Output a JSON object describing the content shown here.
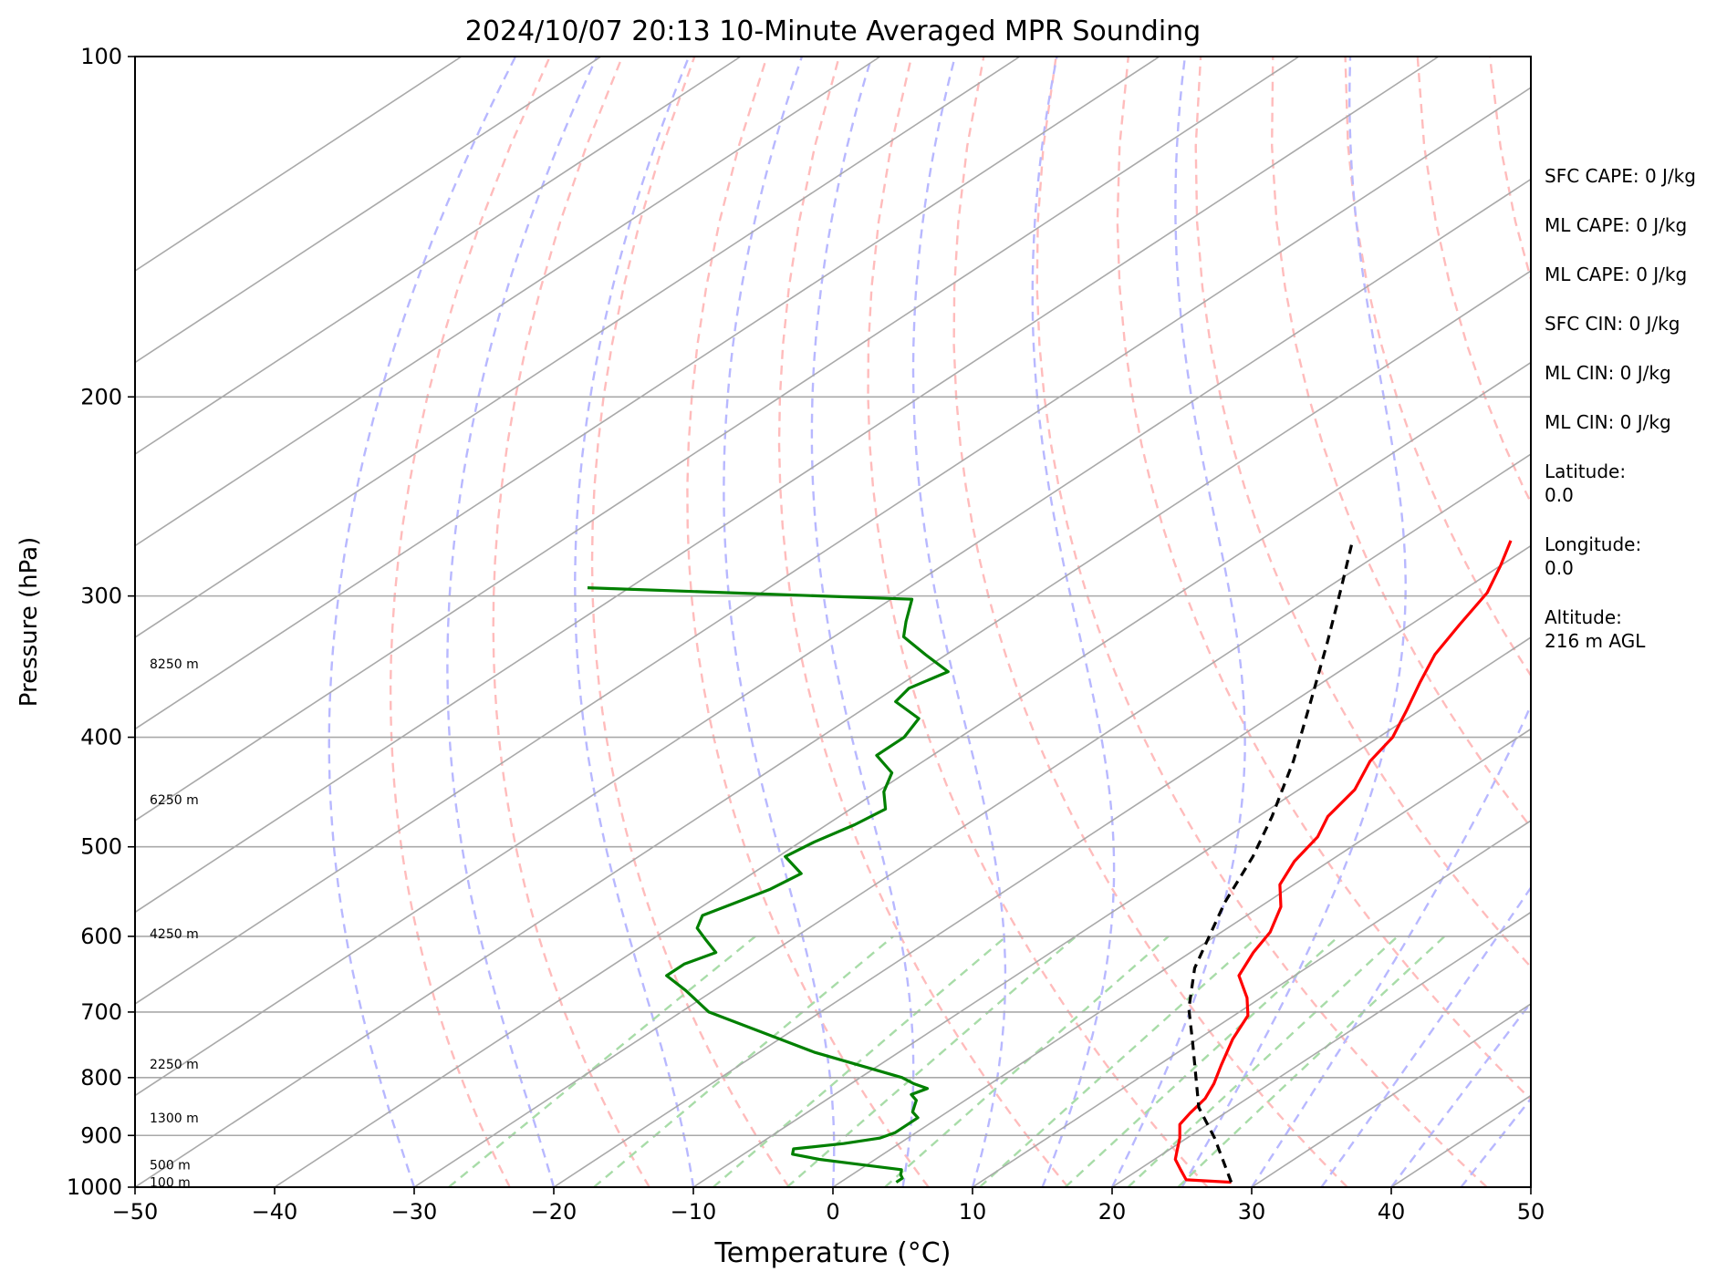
{
  "chart_data": {
    "type": "line",
    "title": "2024/10/07 20:13 10-Minute Averaged MPR Sounding",
    "xlabel": "Temperature (°C)",
    "ylabel": "Pressure (hPa)",
    "xlim": [
      -50,
      50
    ],
    "ylim": [
      1000,
      100
    ],
    "y_scale": "log",
    "skew": 45,
    "grid": true,
    "x_ticks": [
      "−50",
      "−40",
      "−30",
      "−20",
      "−10",
      "0",
      "10",
      "20",
      "30",
      "40",
      "50"
    ],
    "x_tick_values": [
      -50,
      -40,
      -30,
      -20,
      -10,
      0,
      10,
      20,
      30,
      40,
      50
    ],
    "y_ticks": [
      "100",
      "200",
      "300",
      "400",
      "500",
      "600",
      "700",
      "800",
      "900",
      "1000"
    ],
    "y_tick_values": [
      100,
      200,
      300,
      400,
      500,
      600,
      700,
      800,
      900,
      1000
    ],
    "height_labels": [
      {
        "text": "8250 m",
        "p": 345
      },
      {
        "text": "6250 m",
        "p": 455
      },
      {
        "text": "4250 m",
        "p": 598
      },
      {
        "text": "2250 m",
        "p": 780
      },
      {
        "text": "1300 m",
        "p": 870
      },
      {
        "text": "500 m",
        "p": 957
      },
      {
        "text": "100 m",
        "p": 992
      }
    ],
    "series": [
      {
        "role": "temperature",
        "color": "#ff0000",
        "points": [
          [
            28.0,
            990
          ],
          [
            24.5,
            985
          ],
          [
            23.0,
            965
          ],
          [
            21.5,
            945
          ],
          [
            20.5,
            925
          ],
          [
            19.5,
            905
          ],
          [
            18.0,
            880
          ],
          [
            17.5,
            860
          ],
          [
            17.0,
            835
          ],
          [
            16.0,
            810
          ],
          [
            14.5,
            780
          ],
          [
            12.5,
            740
          ],
          [
            11.0,
            705
          ],
          [
            9.0,
            680
          ],
          [
            6.0,
            650
          ],
          [
            4.5,
            620
          ],
          [
            3.5,
            595
          ],
          [
            1.5,
            565
          ],
          [
            -1.0,
            540
          ],
          [
            -2.5,
            515
          ],
          [
            -3.5,
            490
          ],
          [
            -5.0,
            470
          ],
          [
            -6.0,
            445
          ],
          [
            -8.0,
            420
          ],
          [
            -9.0,
            400
          ],
          [
            -11.0,
            378
          ],
          [
            -13.0,
            358
          ],
          [
            -15.0,
            338
          ],
          [
            -16.5,
            318
          ],
          [
            -18.0,
            298
          ],
          [
            -20.0,
            282
          ],
          [
            -22.0,
            268
          ]
        ]
      },
      {
        "role": "dewpoint",
        "color": "#008000",
        "points": [
          [
            4.0,
            990
          ],
          [
            4.0,
            982
          ],
          [
            3.5,
            975
          ],
          [
            3.0,
            965
          ],
          [
            -0.5,
            955
          ],
          [
            -4.0,
            945
          ],
          [
            -6.5,
            935
          ],
          [
            -7.0,
            925
          ],
          [
            -4.0,
            915
          ],
          [
            -2.0,
            905
          ],
          [
            -1.5,
            895
          ],
          [
            -1.5,
            880
          ],
          [
            -1.5,
            868
          ],
          [
            -2.5,
            858
          ],
          [
            -3.0,
            848
          ],
          [
            -3.5,
            838
          ],
          [
            -4.5,
            828
          ],
          [
            -4.0,
            818
          ],
          [
            -5.5,
            810
          ],
          [
            -7.0,
            800
          ],
          [
            -16.0,
            760
          ],
          [
            -28.0,
            700
          ],
          [
            -32.0,
            670
          ],
          [
            -35.0,
            650
          ],
          [
            -35.0,
            635
          ],
          [
            -34.0,
            620
          ],
          [
            -36.0,
            605
          ],
          [
            -38.0,
            590
          ],
          [
            -39.0,
            575
          ],
          [
            -38.0,
            560
          ],
          [
            -37.0,
            545
          ],
          [
            -36.5,
            528
          ],
          [
            -39.5,
            510
          ],
          [
            -39.0,
            495
          ],
          [
            -38.0,
            478
          ],
          [
            -37.5,
            463
          ],
          [
            -39.5,
            447
          ],
          [
            -41.0,
            430
          ],
          [
            -44.0,
            415
          ],
          [
            -44.0,
            400
          ],
          [
            -45.0,
            385
          ],
          [
            -48.5,
            372
          ],
          [
            -49.0,
            362
          ],
          [
            -48.0,
            350
          ],
          [
            -51.5,
            338
          ],
          [
            -55.0,
            326
          ],
          [
            -56.5,
            316
          ],
          [
            -58.5,
            302
          ],
          [
            -83.0,
            295
          ]
        ]
      },
      {
        "role": "parcel",
        "color": "#000000",
        "dashed": true,
        "points": [
          [
            28.0,
            990
          ],
          [
            22.0,
            905
          ],
          [
            17.5,
            850
          ],
          [
            10.0,
            745
          ],
          [
            6.0,
            695
          ],
          [
            2.0,
            640
          ],
          [
            -3.0,
            560
          ],
          [
            -6.0,
            510
          ],
          [
            -9.0,
            470
          ],
          [
            -13.5,
            420
          ],
          [
            -19.0,
            370
          ],
          [
            -24.0,
            330
          ],
          [
            -29.0,
            295
          ],
          [
            -33.0,
            270
          ]
        ]
      }
    ]
  },
  "info_panel": [
    {
      "text": "SFC CAPE: 0 J/kg"
    },
    {
      "text": "ML CAPE: 0 J/kg"
    },
    {
      "text": "ML CAPE: 0 J/kg"
    },
    {
      "text": "SFC CIN: 0 J/kg"
    },
    {
      "text": "ML CIN: 0 J/kg"
    },
    {
      "text": "ML CIN: 0 J/kg"
    },
    {
      "text": "Latitude:\n0.0"
    },
    {
      "text": "Longitude:\n0.0"
    },
    {
      "text": "Altitude:\n216 m AGL"
    }
  ],
  "colors": {
    "temperature": "#ff0000",
    "dewpoint": "#008000",
    "parcel": "#000000",
    "dry_adiabats": "#ffbcbc",
    "moist_adiabats": "#b8b8ff",
    "mixing_ratio": "#a8dca8",
    "isotherms": "#a9a9a9",
    "isobars": "#a9a9a9"
  }
}
